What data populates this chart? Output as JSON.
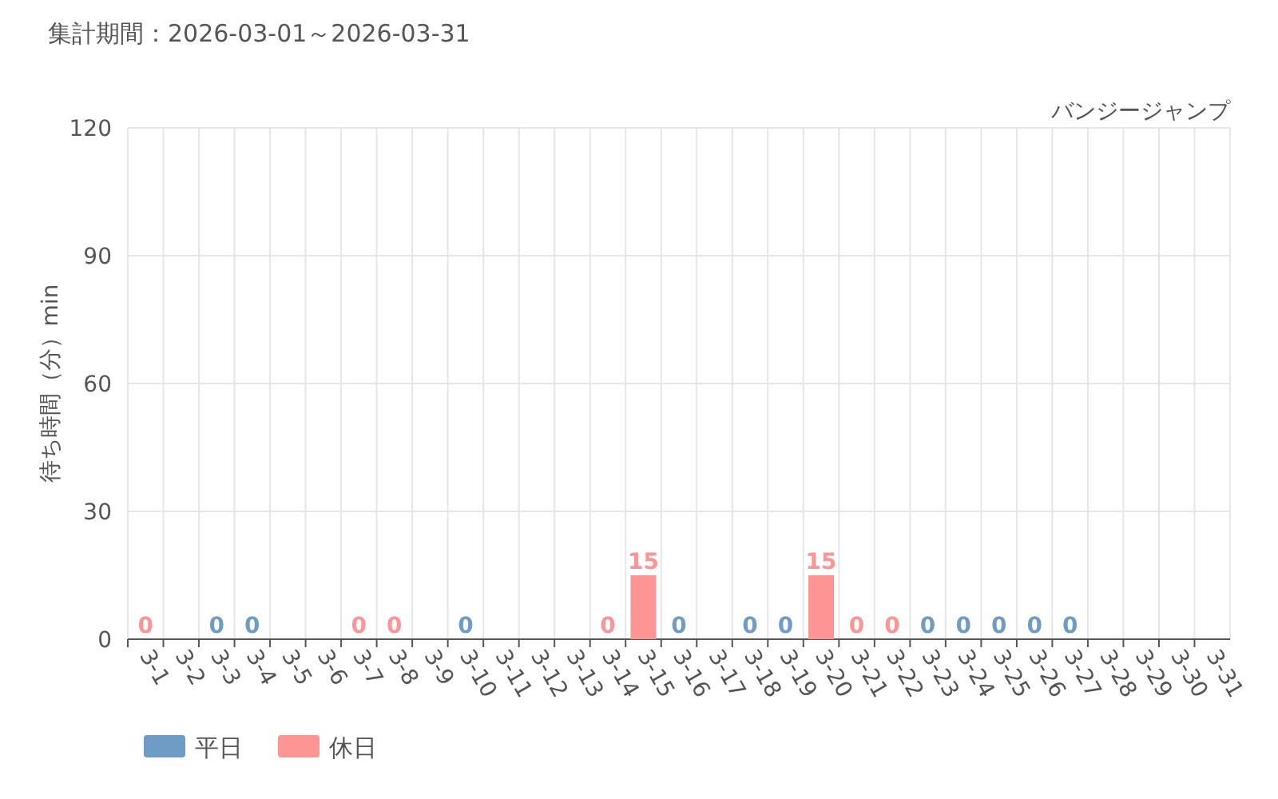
{
  "chart_data": {
    "type": "bar",
    "title": "集計期間：2026-03-01～2026-03-31",
    "subtitle": "バンジージャンプ",
    "ylabel": "待ち時間（分）min",
    "categories": [
      "3-1",
      "3-2",
      "3-3",
      "3-4",
      "3-5",
      "3-6",
      "3-7",
      "3-8",
      "3-9",
      "3-10",
      "3-11",
      "3-12",
      "3-13",
      "3-14",
      "3-15",
      "3-16",
      "3-17",
      "3-18",
      "3-19",
      "3-20",
      "3-21",
      "3-22",
      "3-23",
      "3-24",
      "3-25",
      "3-26",
      "3-27",
      "3-28",
      "3-29",
      "3-30",
      "3-31"
    ],
    "series": [
      {
        "name": "平日",
        "color": "#6f9cc4",
        "values": [
          null,
          null,
          0,
          0,
          null,
          null,
          null,
          null,
          null,
          0,
          null,
          null,
          null,
          null,
          null,
          0,
          null,
          0,
          0,
          null,
          null,
          null,
          0,
          0,
          0,
          0,
          0,
          null,
          null,
          null,
          null
        ]
      },
      {
        "name": "休日",
        "color": "#ff9494",
        "values": [
          0,
          null,
          null,
          null,
          null,
          null,
          0,
          0,
          null,
          null,
          null,
          null,
          null,
          0,
          15,
          null,
          null,
          null,
          null,
          15,
          0,
          0,
          null,
          null,
          null,
          null,
          null,
          null,
          null,
          null,
          null
        ]
      }
    ],
    "ylim": [
      0,
      120
    ],
    "yticks": [
      0,
      30,
      60,
      90,
      120
    ],
    "grid": true,
    "legend": "bottom left",
    "data_labels": true
  }
}
